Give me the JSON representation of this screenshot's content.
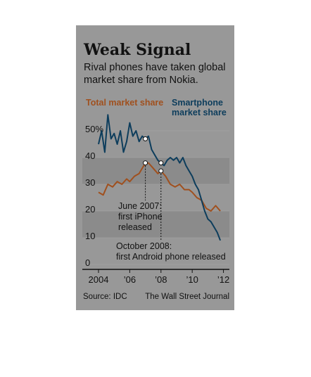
{
  "chart_data": {
    "type": "line",
    "title": "Weak Signal",
    "subtitle_lines": [
      "Rival phones have taken global",
      "market share from Nokia."
    ],
    "x_ticks": [
      "2004",
      "’06",
      "’08",
      "’10",
      "’12"
    ],
    "y_ticks": [
      "0",
      "10",
      "20",
      "30",
      "40",
      "50%"
    ],
    "ylim": [
      0,
      55
    ],
    "grid": true,
    "series": [
      {
        "name": "Total market share",
        "color": "#a0501e",
        "x": [
          2004.0,
          2004.3,
          2004.6,
          2004.9,
          2005.2,
          2005.5,
          2005.8,
          2006.0,
          2006.3,
          2006.6,
          2006.9,
          2007.2,
          2007.5,
          2007.8,
          2008.0,
          2008.3,
          2008.6,
          2008.9,
          2009.2,
          2009.5,
          2009.8,
          2010.0,
          2010.3,
          2010.6,
          2010.9,
          2011.2,
          2011.5,
          2011.8
        ],
        "values": [
          27,
          26,
          30,
          29,
          31,
          30,
          32,
          31,
          33,
          34,
          37,
          38,
          36,
          34,
          35,
          33,
          30,
          29,
          30,
          28,
          28,
          27,
          25,
          24,
          21,
          20,
          22,
          20
        ]
      },
      {
        "name": "Smartphone market share",
        "color": "#0d3d5c",
        "x": [
          2004.0,
          2004.2,
          2004.4,
          2004.6,
          2004.8,
          2005.0,
          2005.2,
          2005.4,
          2005.6,
          2005.8,
          2006.0,
          2006.2,
          2006.4,
          2006.6,
          2006.8,
          2007.0,
          2007.2,
          2007.4,
          2007.6,
          2007.8,
          2008.0,
          2008.2,
          2008.4,
          2008.6,
          2008.8,
          2009.0,
          2009.2,
          2009.4,
          2009.6,
          2009.8,
          2010.0,
          2010.2,
          2010.4,
          2010.6,
          2010.8,
          2011.0,
          2011.2,
          2011.4,
          2011.6,
          2011.8
        ],
        "values": [
          45,
          50,
          42,
          56,
          47,
          49,
          45,
          50,
          42,
          46,
          53,
          48,
          50,
          46,
          48,
          47,
          48,
          43,
          41,
          39,
          38,
          37,
          39,
          40,
          39,
          40,
          38,
          40,
          37,
          35,
          33,
          30,
          28,
          24,
          20,
          17,
          16,
          14,
          12,
          9
        ]
      }
    ],
    "legend": {
      "total": "Total market share",
      "smart_line1": "Smartphone",
      "smart_line2": "market share"
    },
    "annotations": [
      {
        "x": 2007.0,
        "y": 38,
        "line1": "June 2007:",
        "line2": "first iPhone",
        "line3": "released"
      },
      {
        "x": 2008.0,
        "y": 35,
        "line1": "October 2008:",
        "line2": "first Android phone released"
      }
    ],
    "source": "Source: IDC",
    "credit": "The Wall Street Journal"
  },
  "colors": {
    "panel": "#989898",
    "plot_band": "#8b8b8b",
    "axis": "#111111"
  }
}
